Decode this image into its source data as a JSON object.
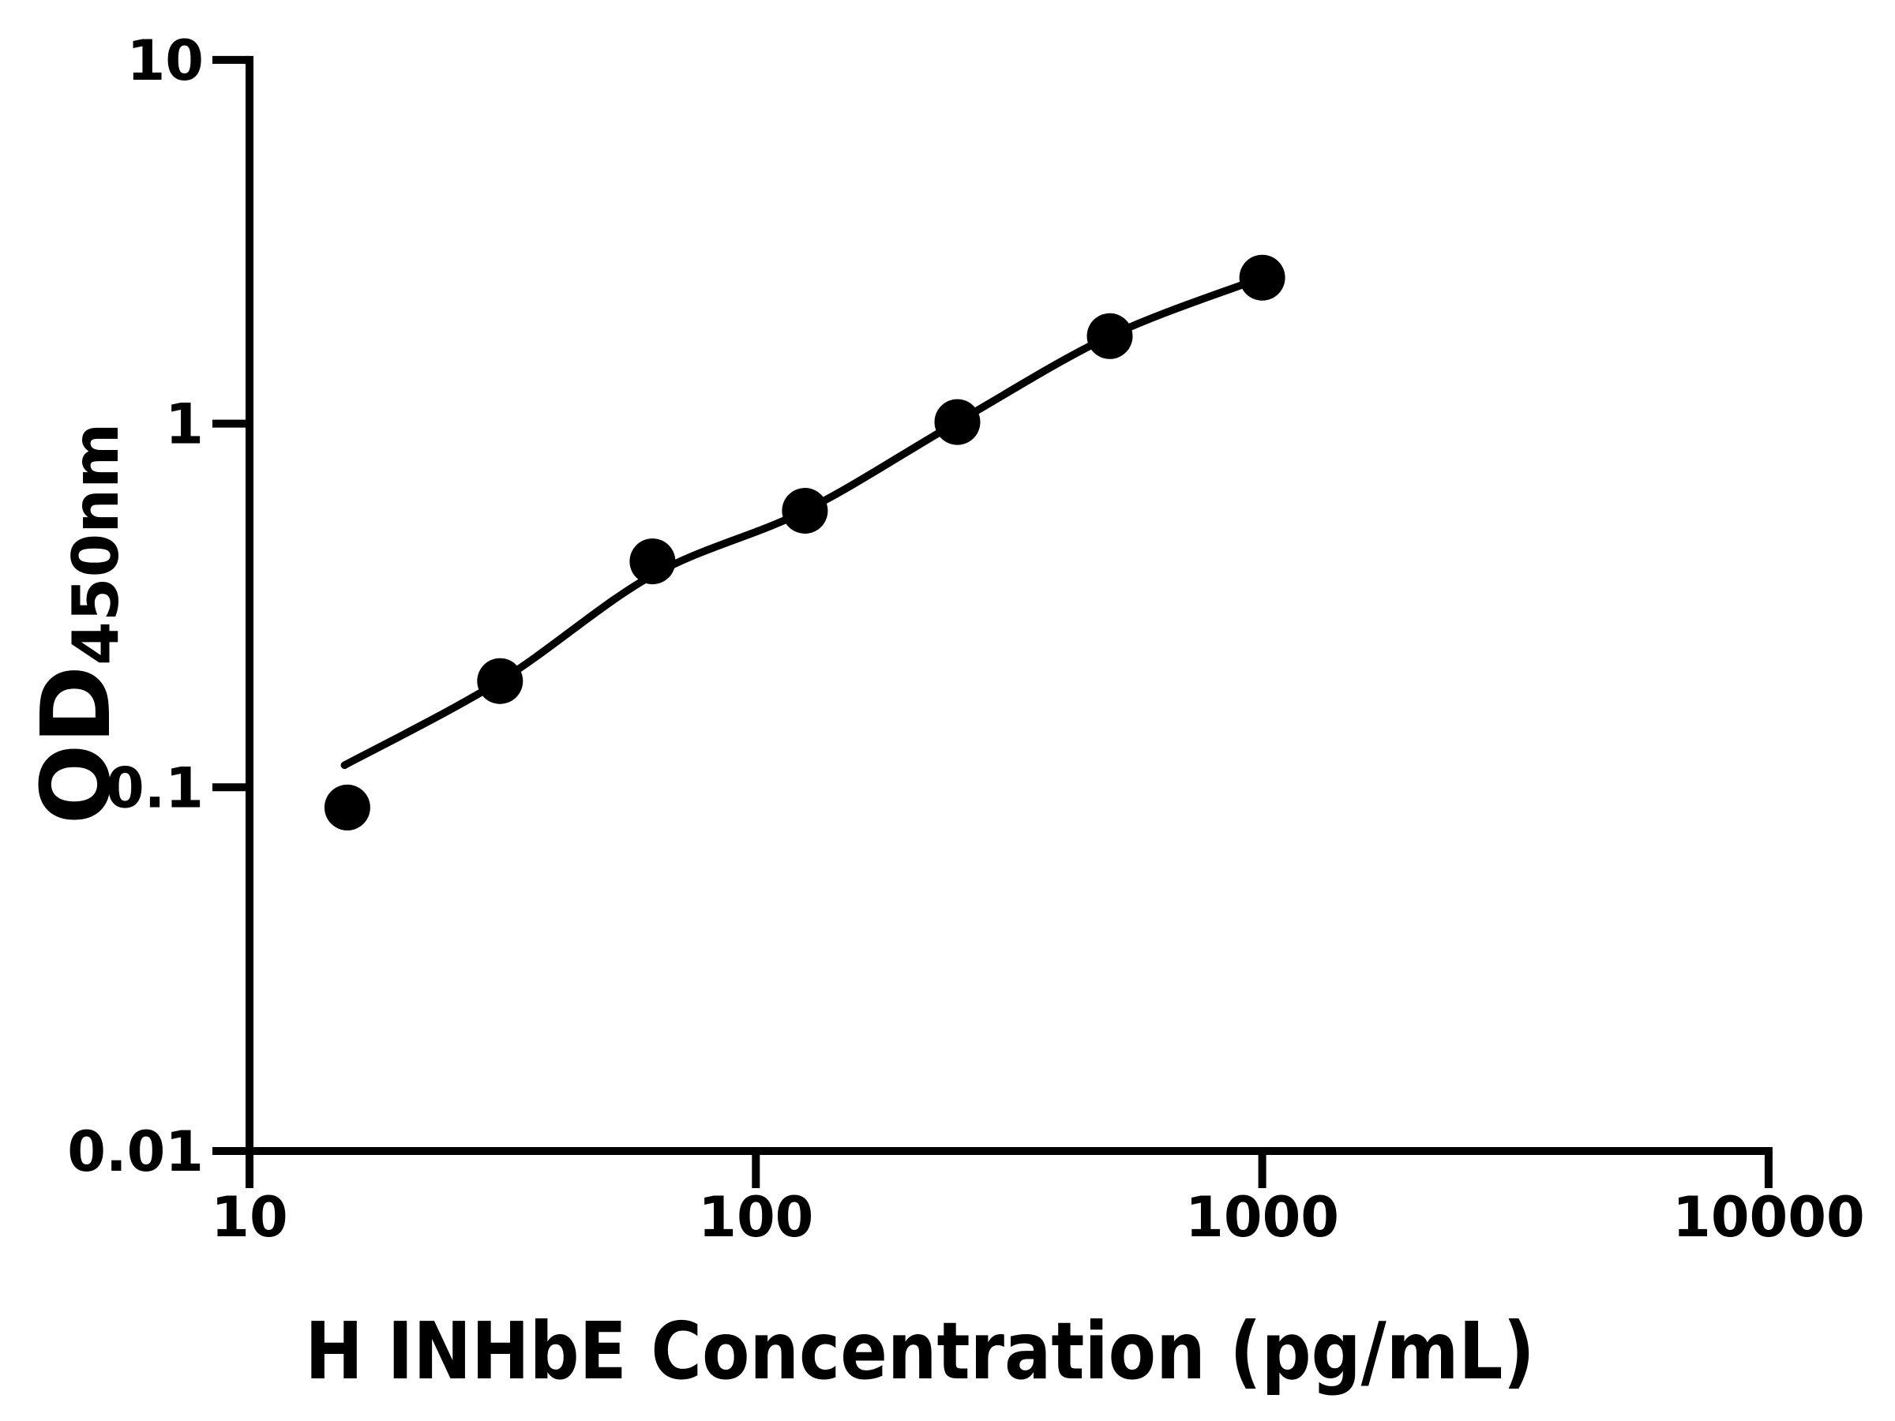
{
  "figure": {
    "background": "#ffffff",
    "foreground": "#000000"
  },
  "chart_data": {
    "type": "scatter",
    "title": "",
    "xlabel": "H INHbE Concentration (pg/mL)",
    "ylabel": "OD450nm",
    "ylabel_base": "OD",
    "ylabel_subscript": "450nm",
    "x_scale": "log",
    "y_scale": "log",
    "xlim": [
      10,
      10000
    ],
    "ylim": [
      0.01,
      10
    ],
    "grid": false,
    "legend": false,
    "marker": "filled-circle",
    "marker_color": "#000000",
    "line_color": "#000000",
    "axis_color": "#000000",
    "x_ticks": [
      {
        "value": 10,
        "label": "10"
      },
      {
        "value": 100,
        "label": "100"
      },
      {
        "value": 1000,
        "label": "1000"
      },
      {
        "value": 10000,
        "label": "10000"
      }
    ],
    "y_ticks": [
      {
        "value": 10,
        "label": "10"
      },
      {
        "value": 1,
        "label": "1"
      },
      {
        "value": 0.1,
        "label": "0.1"
      },
      {
        "value": 0.01,
        "label": "0.01"
      }
    ],
    "series": [
      {
        "name": "standard-curve-points",
        "points": [
          {
            "x": 15.6,
            "y": 0.088
          },
          {
            "x": 31.25,
            "y": 0.196
          },
          {
            "x": 62.5,
            "y": 0.418
          },
          {
            "x": 125,
            "y": 0.576
          },
          {
            "x": 250,
            "y": 1.01
          },
          {
            "x": 500,
            "y": 1.74
          },
          {
            "x": 1000,
            "y": 2.52
          }
        ]
      }
    ],
    "fit_curve": {
      "name": "4pl-fit-line",
      "points": [
        {
          "x": 15.4,
          "y": 0.115
        },
        {
          "x": 31.25,
          "y": 0.196
        },
        {
          "x": 62.5,
          "y": 0.383
        },
        {
          "x": 125,
          "y": 0.576
        },
        {
          "x": 250,
          "y": 1.01
        },
        {
          "x": 500,
          "y": 1.74
        },
        {
          "x": 1000,
          "y": 2.52
        }
      ]
    }
  }
}
